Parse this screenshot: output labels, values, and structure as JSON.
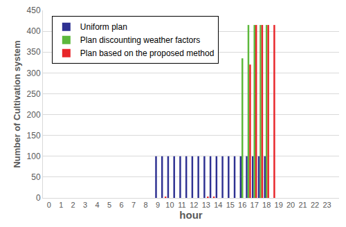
{
  "chart_data": {
    "type": "bar",
    "x_label": "hour",
    "y_label": "Number of Cultivation system",
    "categories": [
      "0",
      null,
      "1",
      null,
      "2",
      null,
      "3",
      null,
      "4",
      null,
      "5",
      null,
      "6",
      null,
      "7",
      null,
      "8",
      null,
      "9",
      null,
      "10",
      null,
      "11",
      null,
      "12",
      null,
      "13",
      null,
      "14",
      null,
      "15",
      null,
      "16",
      null,
      "17",
      null,
      "18",
      null,
      "19",
      null,
      "20",
      null,
      "21",
      null,
      "22",
      null,
      "23",
      null
    ],
    "series": [
      {
        "name": "Uniform plan",
        "color": "#2e3192",
        "values": [
          0,
          0,
          0,
          0,
          0,
          0,
          0,
          0,
          0,
          0,
          0,
          0,
          0,
          0,
          0,
          0,
          0,
          0,
          100,
          100,
          100,
          100,
          100,
          100,
          100,
          100,
          100,
          100,
          100,
          100,
          100,
          100,
          100,
          100,
          100,
          100,
          100,
          0,
          0,
          0,
          0,
          0,
          0,
          0,
          0,
          0,
          0,
          0
        ]
      },
      {
        "name": "Plan discounting weather factors",
        "color": "#5cb83c",
        "values": [
          0,
          0,
          0,
          0,
          0,
          0,
          0,
          0,
          0,
          0,
          0,
          0,
          0,
          0,
          0,
          0,
          0,
          0,
          0,
          0,
          0,
          0,
          0,
          0,
          0,
          0,
          0,
          0,
          0,
          0,
          0,
          0,
          335,
          415,
          415,
          415,
          415,
          0,
          0,
          0,
          0,
          0,
          0,
          0,
          0,
          0,
          0,
          0
        ]
      },
      {
        "name": "Plan based on the proposed method",
        "color": "#e8262a",
        "values": [
          0,
          0,
          0,
          0,
          0,
          0,
          0,
          0,
          0,
          0,
          0,
          0,
          0,
          0,
          0,
          0,
          0,
          0,
          0,
          2,
          0,
          0,
          0,
          0,
          0,
          0,
          2,
          2,
          0,
          0,
          0,
          0,
          0,
          320,
          415,
          415,
          415,
          415,
          0,
          0,
          0,
          0,
          0,
          0,
          0,
          0,
          0,
          0
        ]
      }
    ],
    "ylim": [
      0,
      450
    ],
    "yticks": [
      0,
      50,
      100,
      150,
      200,
      250,
      300,
      350,
      400,
      450
    ],
    "grid": true,
    "legend": "upper left"
  }
}
